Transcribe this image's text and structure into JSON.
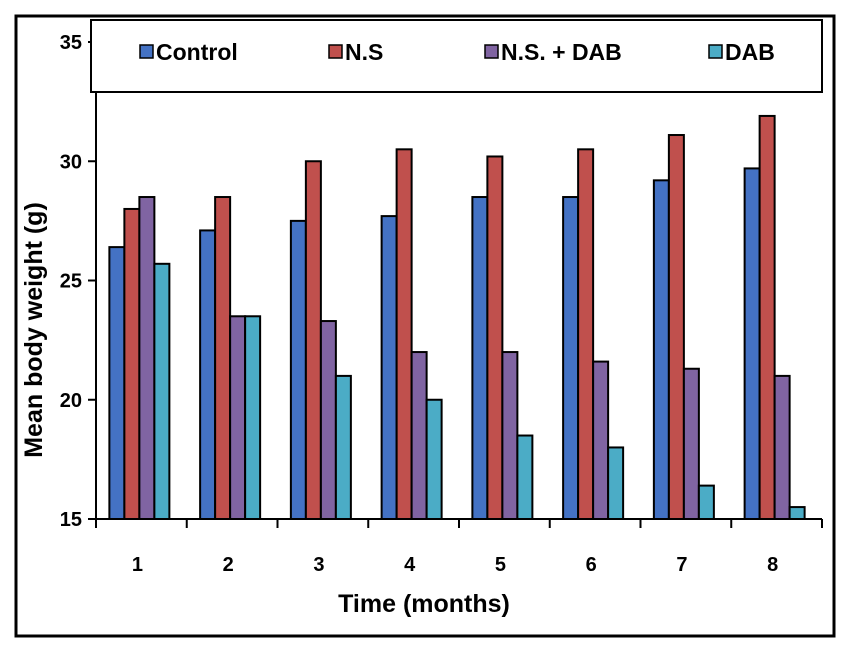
{
  "chart_data": {
    "type": "bar",
    "title": "",
    "xlabel": "Time (months)",
    "ylabel": "Mean body weight (g)",
    "ylim": [
      15,
      35
    ],
    "yticks": [
      15,
      20,
      25,
      30,
      35
    ],
    "categories": [
      "1",
      "2",
      "3",
      "4",
      "5",
      "6",
      "7",
      "8"
    ],
    "series": [
      {
        "name": "Control",
        "color": "#4472c4",
        "values": [
          26.4,
          27.1,
          27.5,
          27.7,
          28.5,
          28.5,
          29.2,
          29.7
        ]
      },
      {
        "name": "N.S",
        "color": "#c0504d",
        "values": [
          28.0,
          28.5,
          30.0,
          30.5,
          30.2,
          30.5,
          31.1,
          31.9
        ]
      },
      {
        "name": "N.S. + DAB",
        "color": "#8064a2",
        "values": [
          28.5,
          23.5,
          23.3,
          22.0,
          22.0,
          21.6,
          21.3,
          21.0
        ]
      },
      {
        "name": "DAB",
        "color": "#4bacc6",
        "values": [
          25.7,
          23.5,
          21.0,
          20.0,
          18.5,
          18.0,
          16.4,
          15.5
        ]
      }
    ],
    "legend_position": "top",
    "grid": false
  }
}
